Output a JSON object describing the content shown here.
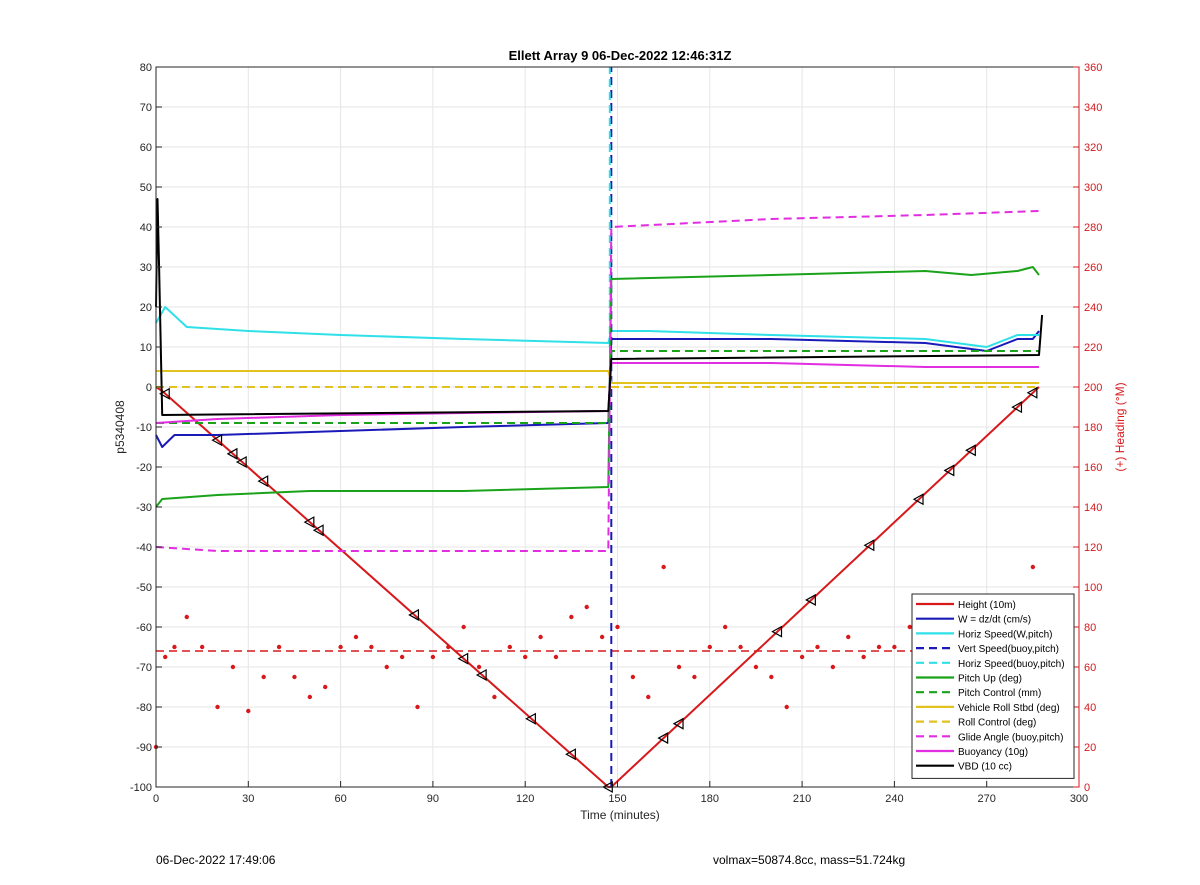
{
  "footer": {
    "timestamp": "06-Dec-2022 17:49:06",
    "volmax_mass": "volmax=50874.8cc, mass=51.724kg"
  },
  "chart_data": {
    "type": "line",
    "title": "Ellett Array 9 06-Dec-2022 12:46:31Z",
    "xlabel": "Time (minutes)",
    "ylabel_left": "p5340408",
    "ylabel_right": "(+) Heading (°M)",
    "xlim": [
      0,
      300
    ],
    "ylim_left": [
      -100,
      80
    ],
    "ylim_right": [
      0,
      360
    ],
    "x_ticks": [
      "0",
      "30",
      "60",
      "90",
      "120",
      "150",
      "180",
      "210",
      "240",
      "270",
      "300"
    ],
    "y_ticks_left": [
      "80",
      "70",
      "60",
      "50",
      "40",
      "30",
      "20",
      "10",
      "0",
      "-10",
      "-20",
      "-30",
      "-40",
      "-50",
      "-60",
      "-70",
      "-80",
      "-90",
      "-100"
    ],
    "y_ticks_right": [
      "360",
      "340",
      "320",
      "300",
      "280",
      "260",
      "240",
      "220",
      "200",
      "180",
      "160",
      "140",
      "120",
      "100",
      "80",
      "60",
      "40",
      "20",
      "0"
    ],
    "grid": true,
    "legend_position": "bottom-right",
    "colors": {
      "height": "#d7191c",
      "w": "#1a1ab8",
      "speed": "#2fe0e8",
      "pitch": "#1aa31a",
      "roll": "#e2c21f",
      "glide": "#e02ee0",
      "buoy": "#e02ee0",
      "vbd": "#000000",
      "heading": "#d7191c",
      "axis_right": "#d7191c"
    },
    "series": [
      {
        "key": "height",
        "name": "Height (10m)",
        "style": "solid",
        "x": [
          0,
          2,
          147,
          148,
          287
        ],
        "y": [
          0,
          -1,
          -100,
          -100,
          0
        ]
      },
      {
        "key": "w",
        "name": "W = dz/dt (cm/s)",
        "style": "solid",
        "x": [
          0,
          2,
          6,
          20,
          60,
          100,
          147,
          148,
          160,
          200,
          250,
          270,
          280,
          285,
          287
        ],
        "y": [
          -12,
          -15,
          -12,
          -12,
          -11,
          -10,
          -9,
          12,
          12,
          12,
          11,
          9,
          12,
          12,
          14
        ]
      },
      {
        "key": "hspeed_w",
        "name": "Horiz Speed(W,pitch)",
        "style": "solid",
        "x": [
          0,
          3,
          10,
          30,
          60,
          100,
          147,
          148,
          160,
          200,
          250,
          270,
          280,
          287
        ],
        "y": [
          16,
          20,
          15,
          14,
          13,
          12,
          11,
          14,
          14,
          13,
          12,
          10,
          13,
          13
        ]
      },
      {
        "key": "vspeed_buoy",
        "name": "Vert Speed(buoy,pitch)",
        "style": "dashed",
        "x": [
          148,
          148
        ],
        "y": [
          -100,
          80
        ]
      },
      {
        "key": "hspeed_buoy",
        "name": "Horiz Speed(buoy,pitch)",
        "style": "dashed",
        "x": [
          147.5,
          147.5
        ],
        "y": [
          10,
          80
        ]
      },
      {
        "key": "pitch_up",
        "name": "Pitch Up (deg)",
        "style": "solid",
        "x": [
          0,
          2,
          20,
          50,
          100,
          147,
          148,
          200,
          250,
          265,
          280,
          285,
          287
        ],
        "y": [
          -30,
          -28,
          -27,
          -26,
          -26,
          -25,
          27,
          28,
          29,
          28,
          29,
          30,
          28
        ]
      },
      {
        "key": "pitch_ctrl",
        "name": "Pitch Control (mm)",
        "style": "dashed",
        "x": [
          0,
          147,
          148,
          287
        ],
        "y": [
          -9,
          -9,
          9,
          9
        ]
      },
      {
        "key": "roll",
        "name": "Vehicle Roll Stbd (deg)",
        "style": "solid",
        "x": [
          0,
          2,
          10,
          147,
          148,
          287
        ],
        "y": [
          4,
          4,
          4,
          4,
          1,
          1
        ]
      },
      {
        "key": "roll_ctrl",
        "name": "Roll Control (deg)",
        "style": "dashed",
        "x": [
          0,
          147,
          148,
          287
        ],
        "y": [
          0,
          0,
          0,
          0
        ]
      },
      {
        "key": "glide",
        "name": "Glide Angle (buoy,pitch)",
        "style": "dashed",
        "x": [
          0,
          20,
          60,
          100,
          147,
          148,
          200,
          250,
          287
        ],
        "y": [
          -40,
          -41,
          -41,
          -41,
          -41,
          40,
          42,
          43,
          44
        ]
      },
      {
        "key": "buoy",
        "name": "Buoyancy (10g)",
        "style": "solid",
        "x": [
          0,
          20,
          60,
          100,
          147,
          148,
          200,
          250,
          287
        ],
        "y": [
          -9,
          -8,
          -7,
          -6.5,
          -6,
          6,
          6,
          5,
          5
        ]
      },
      {
        "key": "vbd",
        "name": "VBD (10 cc)",
        "style": "solid",
        "x": [
          0,
          0.5,
          1,
          2,
          147,
          148,
          287,
          288
        ],
        "y": [
          20,
          47,
          30,
          -7,
          -6,
          7,
          8,
          18
        ]
      }
    ],
    "heading": {
      "name": "(+) Heading (°M)",
      "axis": "right",
      "style": "dots",
      "mean": 68,
      "x": [
        0,
        3,
        6,
        10,
        15,
        20,
        25,
        30,
        35,
        40,
        45,
        50,
        55,
        60,
        65,
        70,
        75,
        80,
        85,
        90,
        95,
        100,
        105,
        110,
        115,
        120,
        125,
        130,
        135,
        140,
        145,
        150,
        155,
        160,
        165,
        170,
        175,
        180,
        185,
        190,
        195,
        200,
        205,
        210,
        215,
        220,
        225,
        230,
        235,
        240,
        245,
        250,
        255,
        260,
        265,
        270,
        275,
        280,
        285,
        287
      ],
      "y": [
        20,
        65,
        70,
        85,
        70,
        40,
        60,
        38,
        55,
        70,
        55,
        45,
        50,
        70,
        75,
        70,
        60,
        65,
        40,
        65,
        70,
        80,
        60,
        45,
        70,
        65,
        75,
        65,
        85,
        90,
        75,
        80,
        55,
        45,
        110,
        60,
        55,
        70,
        80,
        70,
        60,
        55,
        40,
        65,
        70,
        60,
        75,
        65,
        70,
        70,
        80,
        60,
        70,
        65,
        85,
        70,
        65,
        75,
        110,
        15
      ]
    }
  }
}
